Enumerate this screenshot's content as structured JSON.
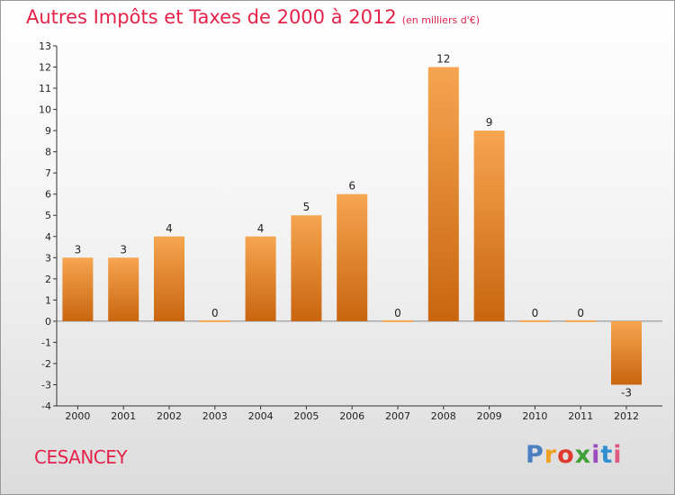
{
  "header": {
    "title": "Autres Impôts et Taxes de 2000 à 2012",
    "subtitle": "(en milliers d'€)"
  },
  "footer": {
    "commune": "CESANCEY",
    "brand_letters": [
      "P",
      "r",
      "o",
      "x",
      "i",
      "t",
      "i"
    ]
  },
  "colors": {
    "title": "#e4224a",
    "bar_light": "#f6a550",
    "bar_dark": "#c9650f",
    "brand": [
      "#4a7fc1",
      "#f0a020",
      "#e03a2f",
      "#3fa03a",
      "#9b4fbf",
      "#2f8fd0",
      "#e05a80"
    ]
  },
  "chart_data": {
    "type": "bar",
    "title": "Autres Impôts et Taxes de 2000 à 2012",
    "subtitle": "(en milliers d'€)",
    "categories": [
      "2000",
      "2001",
      "2002",
      "2003",
      "2004",
      "2005",
      "2006",
      "2007",
      "2008",
      "2009",
      "2010",
      "2011",
      "2012"
    ],
    "values": [
      3,
      3,
      4,
      0,
      4,
      5,
      6,
      0,
      12,
      9,
      0,
      0,
      -3
    ],
    "ylim": [
      -4,
      13
    ],
    "yticks": [
      -4,
      -3,
      -2,
      -1,
      0,
      1,
      2,
      3,
      4,
      5,
      6,
      7,
      8,
      9,
      10,
      11,
      12,
      13
    ],
    "grid": false,
    "legend": "none"
  }
}
